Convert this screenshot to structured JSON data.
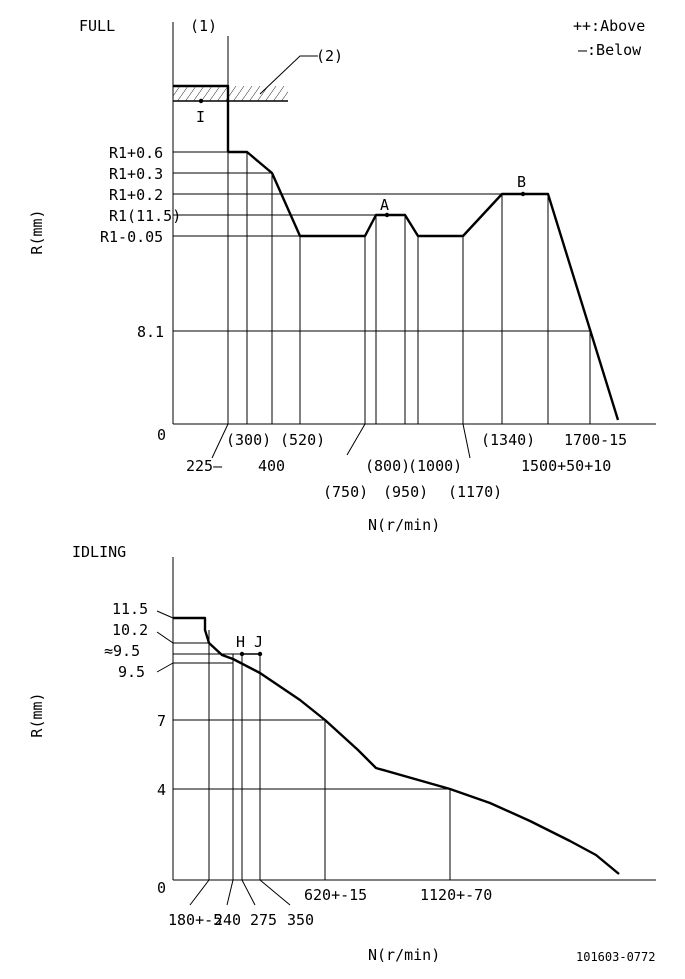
{
  "legend": {
    "above": "++:Above",
    "below": "—:Below"
  },
  "full": {
    "title": "FULL",
    "marker1": "(1)",
    "marker2": "(2)",
    "label_I": "I",
    "label_A": "A",
    "label_B": "B",
    "y_axis_label": "R(mm)",
    "x_axis_label": "N(r/min)",
    "y_ticks": [
      "R1+0.6",
      "R1+0.3",
      "R1+0.2",
      "R1(11.5)",
      "R1-0.05",
      "8.1",
      "0"
    ],
    "x_ticks": [
      "225—",
      "(300)",
      "(520)",
      "400",
      "(750)",
      "(800)",
      "(950)",
      "(1000)",
      "(1170)",
      "(1340)",
      "1500+50+10",
      "1700-15"
    ]
  },
  "idling": {
    "title": "IDLING",
    "label_H": "H",
    "label_J": "J",
    "y_axis_label": "R(mm)",
    "x_axis_label": "N(r/min)",
    "y_ticks": [
      "11.5",
      "10.2",
      "≈9.5",
      "9.5",
      "7",
      "4",
      "0"
    ],
    "x_ticks": [
      "180+-5",
      "240",
      "275",
      "350",
      "620+-15",
      "1120+-70"
    ]
  },
  "footer": {
    "code": "101603-0772"
  },
  "chart_data": [
    {
      "type": "line",
      "title": "FULL",
      "xlabel": "N(r/min)",
      "ylabel": "R(mm)",
      "series": [
        {
          "x": [
            225,
            225,
            300,
            400,
            520,
            750,
            800,
            950,
            1000,
            1170,
            1340,
            1500,
            1700
          ],
          "y": [
            "R1+0.6",
            "R1+0.6",
            "R1+0.6",
            "R1+0.3",
            "R1-0.05",
            "R1-0.05",
            "R1(11.5)",
            "R1(11.5)",
            "R1-0.05",
            "R1-0.05",
            "R1+0.2",
            "R1+0.2",
            "0"
          ]
        }
      ],
      "points": [
        {
          "label": "A",
          "x": 875,
          "y": "R1(11.5)"
        },
        {
          "label": "B",
          "x": 1420,
          "y": "R1+0.2"
        }
      ]
    },
    {
      "type": "line",
      "title": "IDLING",
      "xlabel": "N(r/min)",
      "ylabel": "R(mm)",
      "series": [
        {
          "x": [
            0,
            180,
            180,
            240,
            275,
            350,
            620,
            800,
            1120,
            1500
          ],
          "y": [
            11.5,
            11.5,
            10.2,
            9.5,
            9.5,
            9.2,
            7,
            5,
            4,
            0.5
          ]
        }
      ],
      "points": [
        {
          "label": "H",
          "x": 240,
          "y": 9.5
        },
        {
          "label": "J",
          "x": 275,
          "y": 9.5
        }
      ]
    }
  ]
}
